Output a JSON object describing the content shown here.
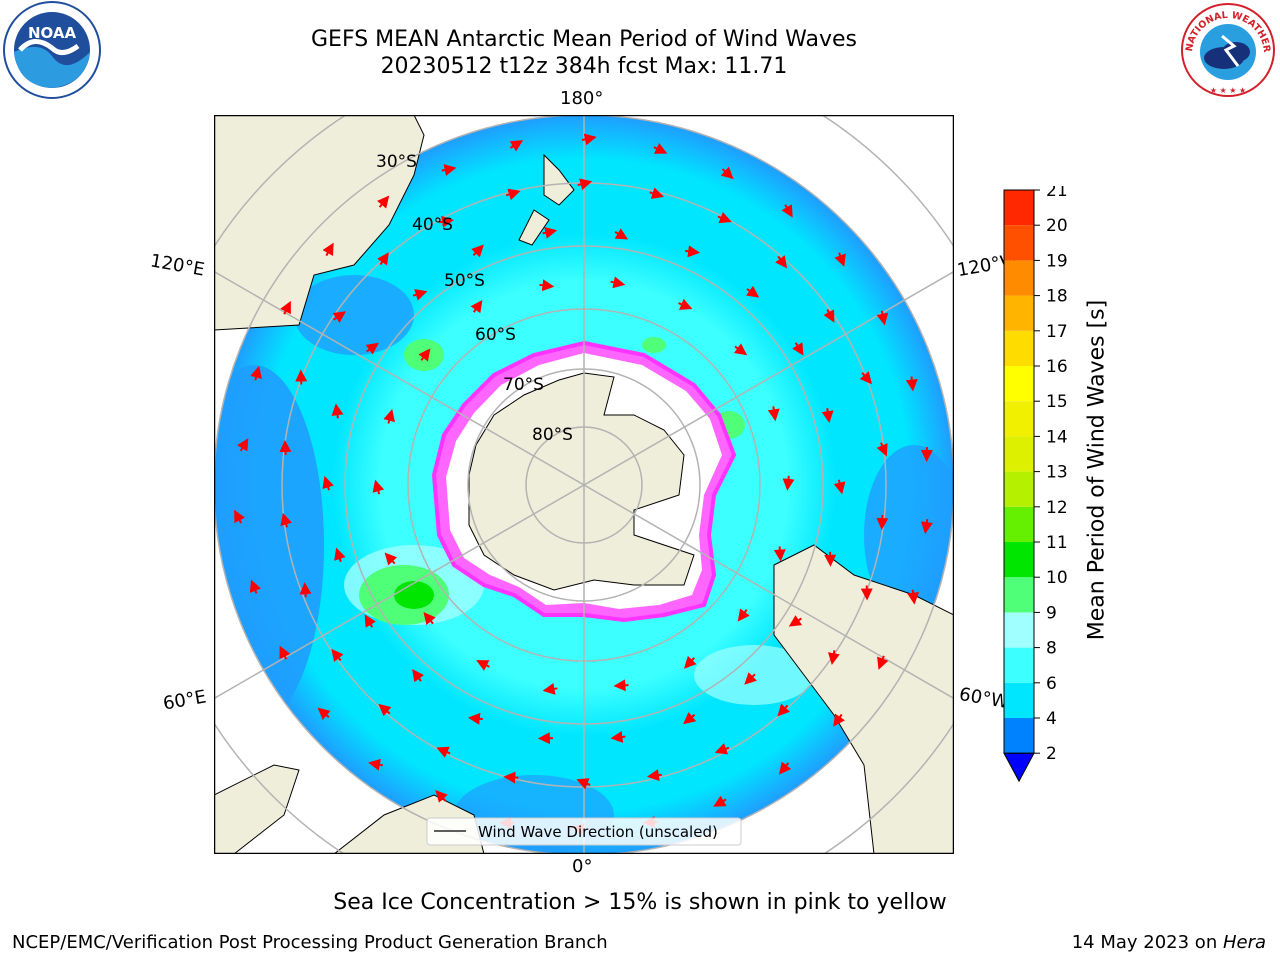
{
  "title": {
    "line1": "GEFS MEAN Antarctic Mean Period of Wind Waves",
    "line2": "20230512 t12z 384h fcst   Max: 11.71"
  },
  "logos": {
    "left": {
      "icon": "noaa-logo",
      "text": "NOAA"
    },
    "right": {
      "icon": "nws-logo",
      "text": "NATIONAL WEATHER SERVICE"
    }
  },
  "map": {
    "projection": "south-polar-stereographic",
    "longitude_labels": {
      "top": "180°",
      "bottom": "0°",
      "upper_left": "120°E",
      "upper_right": "120°W",
      "lower_left": "60°E",
      "lower_right": "60°W"
    },
    "latitude_labels": [
      "30°S",
      "40°S",
      "50°S",
      "60°S",
      "70°S",
      "80°S"
    ],
    "legend": "Wind Wave Direction (unscaled)",
    "colors": {
      "land": "#efeedb",
      "sea_ice": "#ffffff",
      "ice_edge": "#ff33ff",
      "arrows": "#ff0000",
      "grid": "#b3b3b3"
    }
  },
  "colorbar": {
    "label": "Mean Period of Wind Waves [s]",
    "ticks": [
      "2",
      "4",
      "6",
      "8",
      "9",
      "10",
      "11",
      "12",
      "13",
      "14",
      "15",
      "16",
      "17",
      "18",
      "19",
      "20",
      "21"
    ],
    "colors": [
      "#0082ff",
      "#00e6ff",
      "#3cffff",
      "#a0ffff",
      "#50ff78",
      "#00e600",
      "#64f000",
      "#b4f000",
      "#dcf000",
      "#f0f000",
      "#ffff00",
      "#ffdc00",
      "#ffb400",
      "#ff8c00",
      "#ff5000",
      "#ff2800"
    ],
    "extend_color": "#0000ff"
  },
  "notes": {
    "sea_ice": "Sea Ice Concentration > 15% is shown in pink to yellow"
  },
  "footer": {
    "left": "NCEP/EMC/Verification Post Processing Product Generation Branch",
    "right_date": "14 May 2023 on ",
    "right_host": "Hera"
  }
}
